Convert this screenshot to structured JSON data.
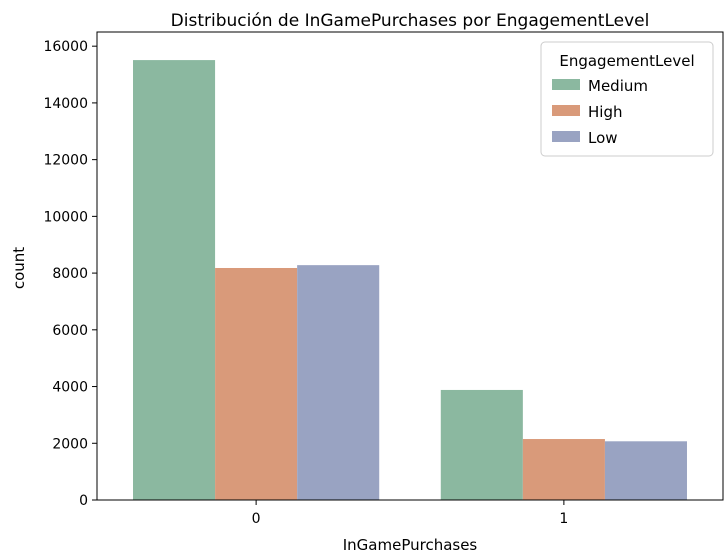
{
  "chart_data": {
    "type": "bar",
    "title": "Distribución de InGamePurchases por EngagementLevel",
    "xlabel": "InGamePurchases",
    "ylabel": "count",
    "categories": [
      "0",
      "1"
    ],
    "ylim": [
      0,
      16500
    ],
    "yticks": [
      0,
      2000,
      4000,
      6000,
      8000,
      10000,
      12000,
      14000,
      16000
    ],
    "grid": false,
    "legend": {
      "title": "EngagementLevel",
      "placement": "top-right"
    },
    "series": [
      {
        "name": "Medium",
        "color": "#8bb8a0",
        "values": [
          15510,
          3880
        ]
      },
      {
        "name": "High",
        "color": "#d99a7a",
        "values": [
          8180,
          2150
        ]
      },
      {
        "name": "Low",
        "color": "#99a3c2",
        "values": [
          8280,
          2070
        ]
      }
    ]
  }
}
